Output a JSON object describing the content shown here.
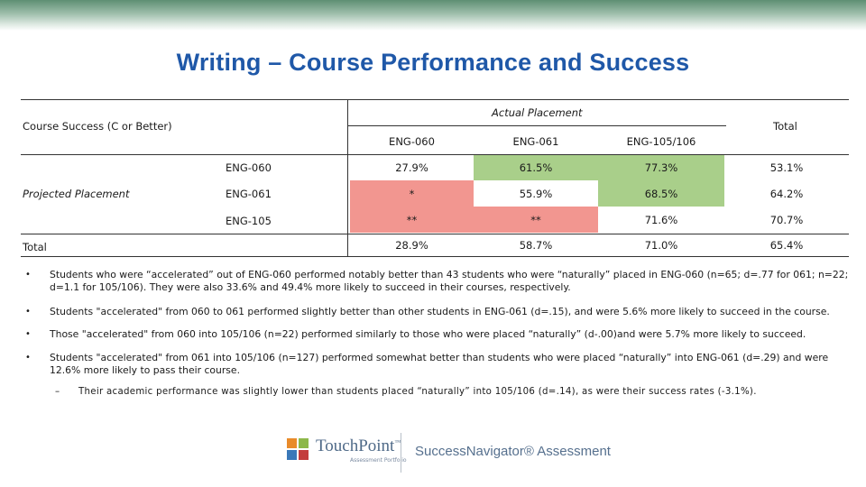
{
  "slide_title": "Writing – Course Performance and Success",
  "table": {
    "row_group_label": "Course Success (C or Better)",
    "col_group_label": "Actual Placement",
    "col_headers": [
      "ENG-060",
      "ENG-061",
      "ENG-105/106"
    ],
    "total_header": "Total",
    "projected_label": "Projected Placement",
    "rows": [
      {
        "label": "ENG-060",
        "cells": [
          "27.9%",
          "61.5%",
          "77.3%"
        ],
        "total": "53.1%"
      },
      {
        "label": "ENG-061",
        "cells": [
          "*",
          "55.9%",
          "68.5%"
        ],
        "total": "64.2%"
      },
      {
        "label": "ENG-105",
        "cells": [
          "**",
          "**",
          "71.6%"
        ],
        "total": "70.7%"
      }
    ],
    "total_row": {
      "label": "Total",
      "cells": [
        "28.9%",
        "58.7%",
        "71.0%"
      ],
      "total": "65.4%"
    },
    "colors": {
      "green": "#a9cf8a",
      "red": "#f29690"
    }
  },
  "bullets": [
    "Students who were “accelerated” out of ENG-060 performed notably better than 43 students who were “naturally” placed in ENG-060 (n=65; d=.77 for 061; n=22; d=1.1 for 105/106). They were also 33.6% and 49.4% more likely to succeed in their courses, respectively.",
    "Students \"accelerated\" from 060 to 061 performed slightly better than other students in ENG-061 (d=.15), and were 5.6% more likely to succeed in the course.",
    "Those \"accelerated\" from 060 into 105/106 (n=22) performed similarly to those who were placed “naturally” (d-.00)and were 5.7% more likely to succeed.",
    "Students \"accelerated\" from 061 into 105/106 (n=127) performed somewhat better than students who were placed “naturally” into ENG-061 (d=.29) and were 12.6% more likely to pass their course."
  ],
  "bullet_symbol": "•",
  "sub_bullet_symbol": "–",
  "sub_bullet": "Their academic performance was slightly lower than students placed “naturally” into 105/106 (d=.14), as were their success rates (-3.1%).",
  "logos": {
    "touchpoint": "TouchPoint",
    "touchpoint_tm": "™",
    "touchpoint_tagline": "Assessment Portfolio",
    "success_navigator": "SuccessNavigator® Assessment",
    "touchpoint_colors": [
      "#e98b2a",
      "#8db84a",
      "#3a78b8",
      "#c33d3d"
    ]
  }
}
